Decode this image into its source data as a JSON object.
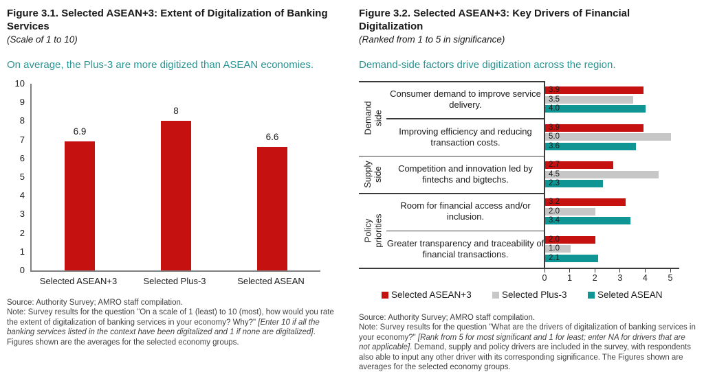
{
  "colors": {
    "red": "#C61111",
    "gray": "#C7C7C7",
    "teal": "#0F9594",
    "headline_teal": "#2A9492",
    "axis_gray": "#7f7f7f",
    "line_dark": "#3a3a3a"
  },
  "left_panel": {
    "title": "Figure 3.1. Selected ASEAN+3: Extent of Digitalization of Banking Services",
    "subtitle": "(Scale of 1 to 10)",
    "headline": "On average, the Plus-3 are more digitized than ASEAN economies.",
    "source": "Source: Authority Survey; AMRO staff compilation.",
    "note_parts": [
      {
        "text": "Note: Survey results for the question \"On a scale of 1 (least) to 10 (most), how would you rate the extent of digitalization of banking services in your economy? Why?\" ",
        "italic": false
      },
      {
        "text": "[Enter 10 if all the banking services listed in the context have been digitalized and 1 if none are digitalized]",
        "italic": true
      },
      {
        "text": ". Figures shown are the averages for the selected economy groups.",
        "italic": false
      }
    ]
  },
  "right_panel": {
    "title": "Figure 3.2. Selected ASEAN+3: Key Drivers of Financial Digitalization",
    "subtitle": "(Ranked from 1 to 5 in significance)",
    "headline": "Demand-side factors drive digitization across the region.",
    "source": "Source: Authority Survey; AMRO staff compilation.",
    "note_parts": [
      {
        "text": "Note: Survey results for the question \"What are the drivers of digitalization of banking services in your economy?\" ",
        "italic": false
      },
      {
        "text": "[Rank from 5 for most significant and 1 for least; enter NA for drivers that are not applicable]",
        "italic": true
      },
      {
        "text": ". Demand, supply and policy drivers are included in the survey, with respondents also able to input any other driver with its corresponding significance. The Figures shown are averages for the selected economy groups.",
        "italic": false
      }
    ]
  },
  "chart_data": [
    {
      "type": "bar",
      "title": "Figure 3.1. Selected ASEAN+3: Extent of Digitalization of Banking Services",
      "subtitle": "(Scale of 1 to 10)",
      "categories": [
        "Selected ASEAN+3",
        "Selected Plus-3",
        "Selected ASEAN"
      ],
      "values": [
        6.9,
        8,
        6.6
      ],
      "display_values": [
        "6.9",
        "8",
        "6.6"
      ],
      "bar_color": "#C61111",
      "xlabel": "",
      "ylabel": "",
      "ylim": [
        0,
        10
      ],
      "yticks": [
        0,
        1,
        2,
        3,
        4,
        5,
        6,
        7,
        8,
        9,
        10
      ],
      "grid": false,
      "legend": false
    },
    {
      "type": "bar",
      "orientation": "horizontal",
      "grouped": true,
      "title": "Figure 3.2. Selected ASEAN+3: Key Drivers of Financial Digitalization",
      "subtitle": "(Ranked from 1 to 5 in significance)",
      "group_panels": [
        {
          "label": "Demand side",
          "label_lines": [
            "Demand",
            "side"
          ],
          "span": 2
        },
        {
          "label": "Supply side",
          "label_lines": [
            "Supply",
            "side"
          ],
          "span": 1
        },
        {
          "label": "Policy priorities",
          "label_lines": [
            "Policy",
            "priorities"
          ],
          "span": 2
        }
      ],
      "categories": [
        "Consumer demand to improve service delivery.",
        "Improving efficiency and reducing transaction costs.",
        "Competition and innovation led by fintechs and bigtechs.",
        "Room for financial access and/or inclusion.",
        "Greater transparency and traceability of financial transactions."
      ],
      "series": [
        {
          "name": "Selected ASEAN+3",
          "color": "#C61111",
          "values": [
            3.9,
            3.9,
            2.7,
            3.2,
            2.0
          ]
        },
        {
          "name": "Selected Plus-3",
          "color": "#C7C7C7",
          "values": [
            3.5,
            5.0,
            4.5,
            2.0,
            1.0
          ]
        },
        {
          "name": "Seleted ASEAN",
          "color": "#0F9594",
          "values": [
            4.0,
            3.6,
            2.3,
            3.4,
            2.1
          ]
        }
      ],
      "xlim": [
        0,
        5
      ],
      "xticks": [
        0,
        1,
        2,
        3,
        4,
        5
      ],
      "grid": false,
      "legend_position": "bottom"
    }
  ]
}
